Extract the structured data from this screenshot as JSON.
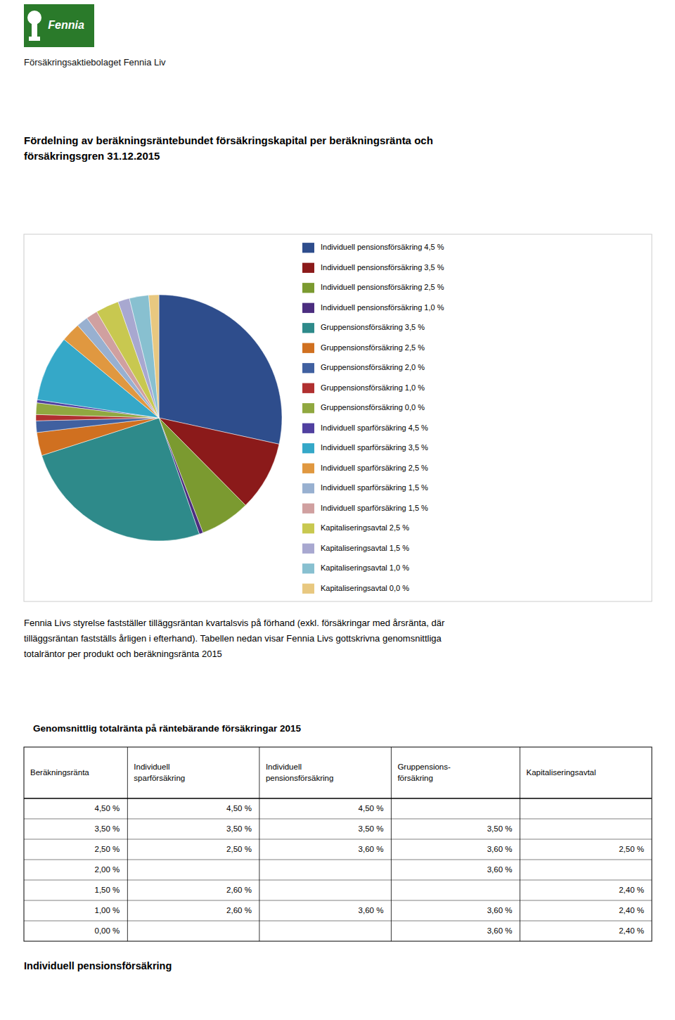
{
  "logo": {
    "text": "Fennia",
    "color": "#2A7A2A"
  },
  "header_text": "Försäkringsaktiebolaget Fennia Liv",
  "chart_data": {
    "type": "pie",
    "title": [
      "Fördelning av beräkningsräntebundet försäkringskapital per beräkningsränta och",
      "försäkringsgren 31.12.2015"
    ],
    "categories": [
      "Individuell pensionsförsäkring 4,5 %",
      "Individuell pensionsförsäkring 3,5 %",
      "Individuell pensionsförsäkring 2,5 %",
      "Individuell pensionsförsäkring 1,0 %",
      "Gruppensionsförsäkring 3,5 %",
      "Gruppensionsförsäkring 2,5 %",
      "Gruppensionsförsäkring 2,0 %",
      "Gruppensionsförsäkring 1,0 %",
      "Gruppensionsförsäkring 0,0 %",
      "Individuell sparförsäkring 4,5 %",
      "Individuell sparförsäkring 3,5 %",
      "Individuell sparförsäkring 2,5 %",
      "Individuell sparförsäkring 1,5 %",
      "Individuell sparförsäkring 1,5 %",
      "Kapitaliseringsavtal 2,5 %",
      "Kapitaliseringsavtal 1,5 %",
      "Kapitaliseringsavtal 1,0 %",
      "Kapitaliseringsavtal 0,0 %"
    ],
    "values": [
      28,
      9,
      6.5,
      0.5,
      25,
      3,
      1.5,
      0.8,
      1.5,
      0.4,
      8.5,
      2.5,
      1.5,
      1.5,
      3,
      1.5,
      2.5,
      1.3
    ],
    "colors": [
      "#2E4D8C",
      "#8B1A1A",
      "#7B9A30",
      "#4B2D7F",
      "#2E8A8A",
      "#D07020",
      "#4060A0",
      "#B03030",
      "#90A840",
      "#5040A0",
      "#35A8C8",
      "#E09840",
      "#98B0D0",
      "#D0A0A0",
      "#C8C850",
      "#A8A8D0",
      "#88C0D0",
      "#E8C880"
    ],
    "legend": "right"
  },
  "body_text": [
    "Fennia Livs styrelse fastställer tilläggsräntan kvartalsvis på förhand (exkl. försäkringar med årsränta, där",
    "tilläggsräntan fastställs årligen i efterhand). Tabellen nedan visar Fennia Livs gottskrivna genomsnittliga",
    "totalräntor per produkt och beräkningsränta 2015"
  ],
  "table": {
    "title": "Genomsnittlig totalränta på räntebärande försäkringar 2015",
    "columns": [
      [
        "Beräkningsränta"
      ],
      [
        "Individuell",
        "sparförsäkring"
      ],
      [
        "Individuell",
        "pensionsförsäkring"
      ],
      [
        "Gruppensions-",
        "försäkring"
      ],
      [
        "Kapitaliseringsavtal"
      ]
    ],
    "rows": [
      [
        "4,50 %",
        "4,50 %",
        "4,50 %",
        null,
        null
      ],
      [
        "3,50 %",
        "3,50 %",
        "3,50 %",
        "3,50 %",
        null
      ],
      [
        "2,50 %",
        "2,50 %",
        "3,60 %",
        "3,60 %",
        "2,50 %"
      ],
      [
        "2,00 %",
        null,
        null,
        "3,60 %",
        null
      ],
      [
        "1,50 %",
        "2,60 %",
        null,
        null,
        "2,40 %"
      ],
      [
        "1,00 %",
        "2,60 %",
        "3,60 %",
        "3,60 %",
        "2,40 %"
      ],
      [
        "0,00 %",
        null,
        null,
        "3,60 %",
        "2,40 %"
      ]
    ]
  },
  "footer_text": "Individuell pensionsförsäkring"
}
